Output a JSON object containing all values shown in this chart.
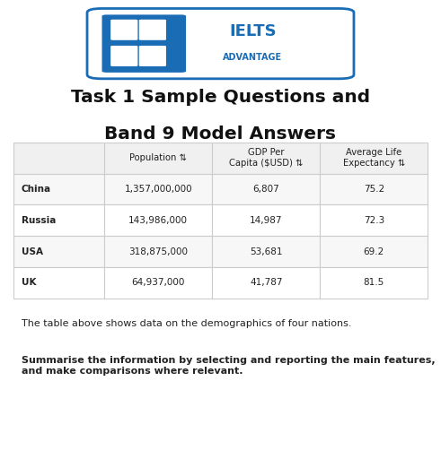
{
  "title_line1": "Task 1 Sample Questions and",
  "title_line2": "Band 9 Model Answers",
  "col_headers": [
    "Population ⇅",
    "GDP Per\nCapita ($USD) ⇅",
    "Average Life\nExpectancy ⇅"
  ],
  "row_labels": [
    "China",
    "Russia",
    "USA",
    "UK"
  ],
  "table_data": [
    [
      "1,357,000,000",
      "6,807",
      "75.2"
    ],
    [
      "143,986,000",
      "14,987",
      "72.3"
    ],
    [
      "318,875,000",
      "53,681",
      "69.2"
    ],
    [
      "64,937,000",
      "41,787",
      "81.5"
    ]
  ],
  "caption_normal": "The table above shows data on the demographics of four nations.",
  "caption_bold": "Summarise the information by selecting and reporting the main features,\nand make comparisons where relevant.",
  "bg_color": "#ffffff",
  "header_bg": "#f0f0f0",
  "row_bg_odd": "#f7f7f7",
  "row_bg_even": "#ffffff",
  "border_color": "#cccccc",
  "text_color": "#222222",
  "title_color": "#111111",
  "logo_badge_color": "#1a6cb5"
}
